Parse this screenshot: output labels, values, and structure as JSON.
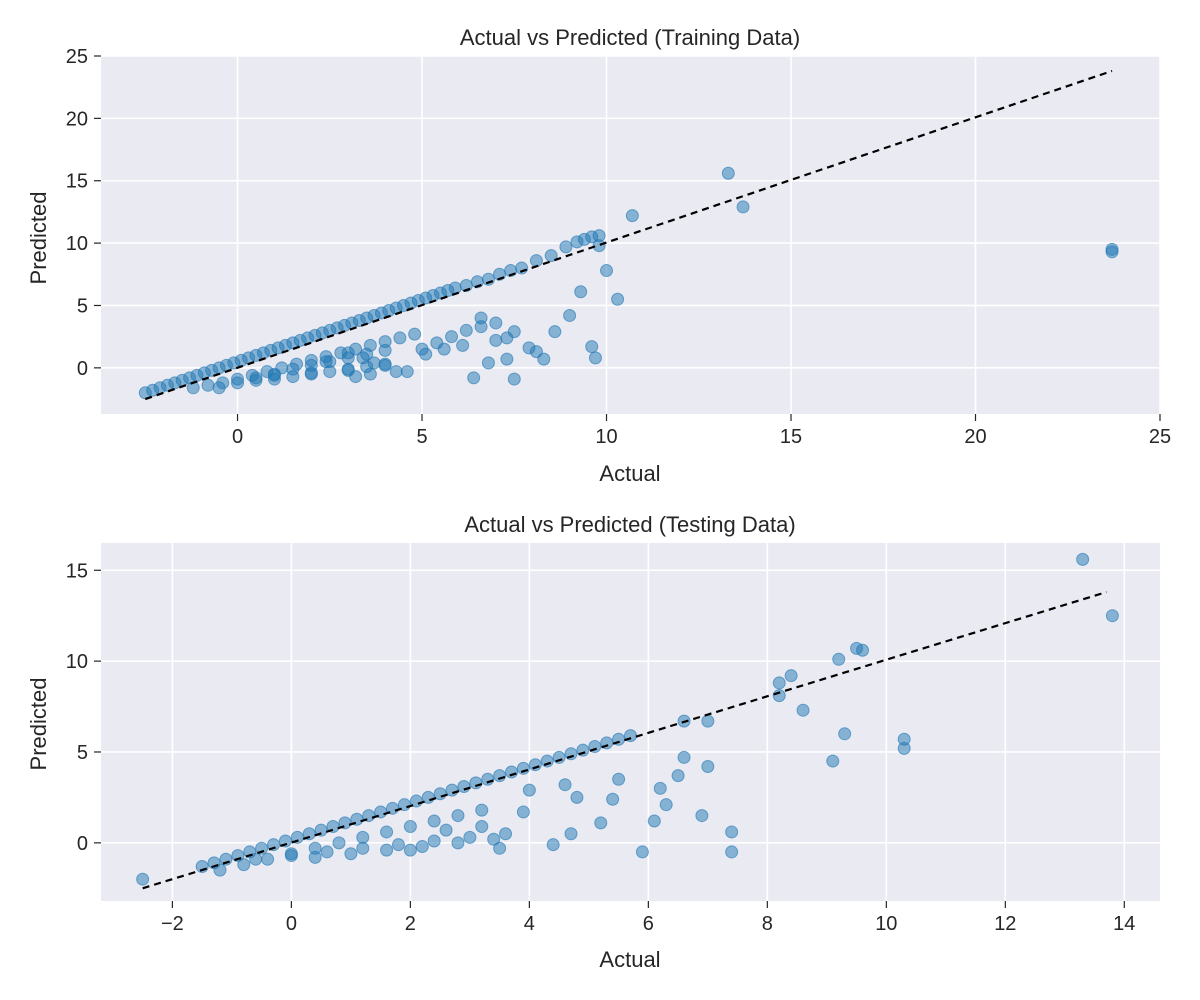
{
  "chart_data": [
    {
      "type": "scatter",
      "title": "Actual vs Predicted (Training Data)",
      "xlabel": "Actual",
      "ylabel": "Predicted",
      "xlim": [
        -3.7,
        25
      ],
      "ylim": [
        -3.7,
        25
      ],
      "xticks": [
        0,
        5,
        10,
        15,
        20,
        25
      ],
      "yticks": [
        0,
        5,
        10,
        15,
        20,
        25
      ],
      "grid": true,
      "point_color": "#1f77b4",
      "reference_line": {
        "style": "dashed",
        "color": "#000000",
        "from": [
          -2.5,
          -2.5
        ],
        "to": [
          23.7,
          23.8
        ]
      },
      "x": [
        -2.5,
        -2.3,
        -2.1,
        -1.9,
        -1.7,
        -1.5,
        -1.3,
        -1.1,
        -0.9,
        -0.7,
        -0.5,
        -0.3,
        -0.1,
        0.1,
        0.3,
        0.5,
        0.7,
        0.9,
        1.1,
        1.3,
        1.5,
        1.7,
        1.9,
        2.1,
        2.3,
        2.5,
        2.7,
        2.9,
        3.1,
        3.3,
        3.5,
        3.7,
        3.9,
        4.1,
        4.3,
        4.5,
        4.7,
        4.9,
        5.1,
        5.3,
        5.5,
        5.7,
        5.9,
        6.2,
        6.5,
        6.8,
        7.1,
        7.4,
        7.7,
        8.1,
        8.5,
        8.9,
        9.2,
        9.4,
        9.6,
        9.8,
        -1.2,
        -0.8,
        -0.4,
        0,
        0.4,
        0.8,
        1.2,
        1.6,
        2,
        2.4,
        2.8,
        3.2,
        3.6,
        4,
        4.4,
        4.8,
        -0.5,
        0,
        0.5,
        1,
        1.5,
        2,
        2.5,
        3,
        3.5,
        4,
        0.5,
        1,
        1.5,
        2,
        2.5,
        3,
        3.5,
        4,
        1,
        2,
        3,
        3.2,
        3.6,
        4.3,
        5,
        5.4,
        5.8,
        6.2,
        6.6,
        7,
        2.4,
        3,
        3.4,
        3.7,
        4,
        4.6,
        5.1,
        5.6,
        6.1,
        6.6,
        7,
        7.3,
        7.5,
        7.9,
        8.3,
        9,
        9.3,
        9.6,
        9.7,
        10,
        10.3,
        10.7,
        13.3,
        13.7,
        23.7,
        23.7,
        6.4,
        6.8,
        7.3,
        7.5,
        8.1,
        8.6,
        9.8
      ],
      "y": [
        -2,
        -1.8,
        -1.6,
        -1.4,
        -1.2,
        -1,
        -0.8,
        -0.6,
        -0.4,
        -0.2,
        0,
        0.2,
        0.4,
        0.6,
        0.8,
        1,
        1.2,
        1.4,
        1.6,
        1.8,
        2,
        2.2,
        2.4,
        2.6,
        2.8,
        3,
        3.2,
        3.4,
        3.6,
        3.8,
        4,
        4.2,
        4.4,
        4.6,
        4.8,
        5,
        5.2,
        5.4,
        5.6,
        5.8,
        6,
        6.2,
        6.4,
        6.6,
        6.9,
        7.1,
        7.5,
        7.8,
        8,
        8.6,
        9,
        9.7,
        10.1,
        10.3,
        10.5,
        10.6,
        -1.6,
        -1.4,
        -1.2,
        -0.9,
        -0.6,
        -0.3,
        0,
        0.3,
        0.6,
        0.9,
        1.2,
        1.5,
        1.8,
        2.1,
        2.4,
        2.7,
        -1.6,
        -1.2,
        -0.8,
        -0.5,
        -0.1,
        0.2,
        0.5,
        0.8,
        1.1,
        1.4,
        -1,
        -0.9,
        -0.7,
        -0.5,
        -0.3,
        -0.1,
        0.1,
        0.3,
        -0.6,
        -0.4,
        -0.2,
        -0.7,
        -0.5,
        -0.3,
        1.5,
        2,
        2.5,
        3,
        3.3,
        3.6,
        0.5,
        1.2,
        0.8,
        0.4,
        0.2,
        -0.3,
        1.1,
        1.5,
        1.8,
        4,
        2.2,
        0.7,
        -0.9,
        1.6,
        0.7,
        4.2,
        6.1,
        1.7,
        0.8,
        7.8,
        5.5,
        12.2,
        15.6,
        12.9,
        9.5,
        9.3,
        -0.8,
        0.4,
        2.4,
        2.9,
        1.3,
        2.9,
        9.8
      ]
    },
    {
      "type": "scatter",
      "title": "Actual vs Predicted (Testing Data)",
      "xlabel": "Actual",
      "ylabel": "Predicted",
      "xlim": [
        -3.2,
        14.6
      ],
      "ylim": [
        -3.2,
        16.5
      ],
      "xticks": [
        -2,
        0,
        2,
        4,
        6,
        8,
        10,
        12,
        14
      ],
      "yticks": [
        0,
        5,
        10,
        15
      ],
      "grid": true,
      "point_color": "#1f77b4",
      "reference_line": {
        "style": "dashed",
        "color": "#000000",
        "from": [
          -2.5,
          -2.5
        ],
        "to": [
          13.7,
          13.8
        ]
      },
      "x": [
        -2.5,
        -1.5,
        -1.3,
        -1.1,
        -0.9,
        -0.7,
        -0.5,
        -0.3,
        -0.1,
        0.1,
        0.3,
        0.5,
        0.7,
        0.9,
        1.1,
        1.3,
        1.5,
        1.7,
        1.9,
        2.1,
        2.3,
        2.5,
        2.7,
        2.9,
        3.1,
        3.3,
        3.5,
        3.7,
        3.9,
        4.1,
        4.3,
        4.5,
        4.7,
        4.9,
        5.1,
        5.3,
        5.5,
        5.7,
        -1.2,
        -0.8,
        -0.4,
        0,
        0.4,
        0.8,
        1.2,
        1.6,
        2,
        2.4,
        2.8,
        3.2,
        -0.6,
        0,
        0.6,
        1.2,
        1.8,
        2.4,
        3,
        3.6,
        0.4,
        1,
        1.6,
        2.2,
        2.8,
        3.4,
        2,
        2.6,
        3.2,
        3.5,
        3.9,
        4.4,
        4.7,
        5.2,
        5.5,
        6.1,
        6.3,
        6.6,
        6.9,
        7,
        7.4,
        7.4,
        8.2,
        8.6,
        8.2,
        8.4,
        9.1,
        9.2,
        9.3,
        9.5,
        9.6,
        10.3,
        10.3,
        13.3,
        13.8,
        5.9,
        4.8,
        4,
        4.6,
        5.4,
        6.2,
        6.5,
        6.6,
        7
      ],
      "y": [
        -2,
        -1.3,
        -1.1,
        -0.9,
        -0.7,
        -0.5,
        -0.3,
        -0.1,
        0.1,
        0.3,
        0.5,
        0.7,
        0.9,
        1.1,
        1.3,
        1.5,
        1.7,
        1.9,
        2.1,
        2.3,
        2.5,
        2.7,
        2.9,
        3.1,
        3.3,
        3.5,
        3.7,
        3.9,
        4.1,
        4.3,
        4.5,
        4.7,
        4.9,
        5.1,
        5.3,
        5.5,
        5.7,
        5.9,
        -1.5,
        -1.2,
        -0.9,
        -0.6,
        -0.3,
        0,
        0.3,
        0.6,
        0.9,
        1.2,
        1.5,
        1.8,
        -0.9,
        -0.7,
        -0.5,
        -0.3,
        -0.1,
        0.1,
        0.3,
        0.5,
        -0.8,
        -0.6,
        -0.4,
        -0.2,
        0,
        0.2,
        -0.4,
        0.7,
        0.9,
        -0.3,
        1.7,
        -0.1,
        0.5,
        1.1,
        3.5,
        1.2,
        2.1,
        4.7,
        1.5,
        4.2,
        0.6,
        -0.5,
        8.1,
        7.3,
        8.8,
        9.2,
        4.5,
        10.1,
        6,
        10.7,
        10.6,
        5.2,
        5.7,
        15.6,
        12.5,
        -0.5,
        2.5,
        2.9,
        3.2,
        2.4,
        3,
        3.7,
        6.7,
        6.7
      ]
    }
  ]
}
